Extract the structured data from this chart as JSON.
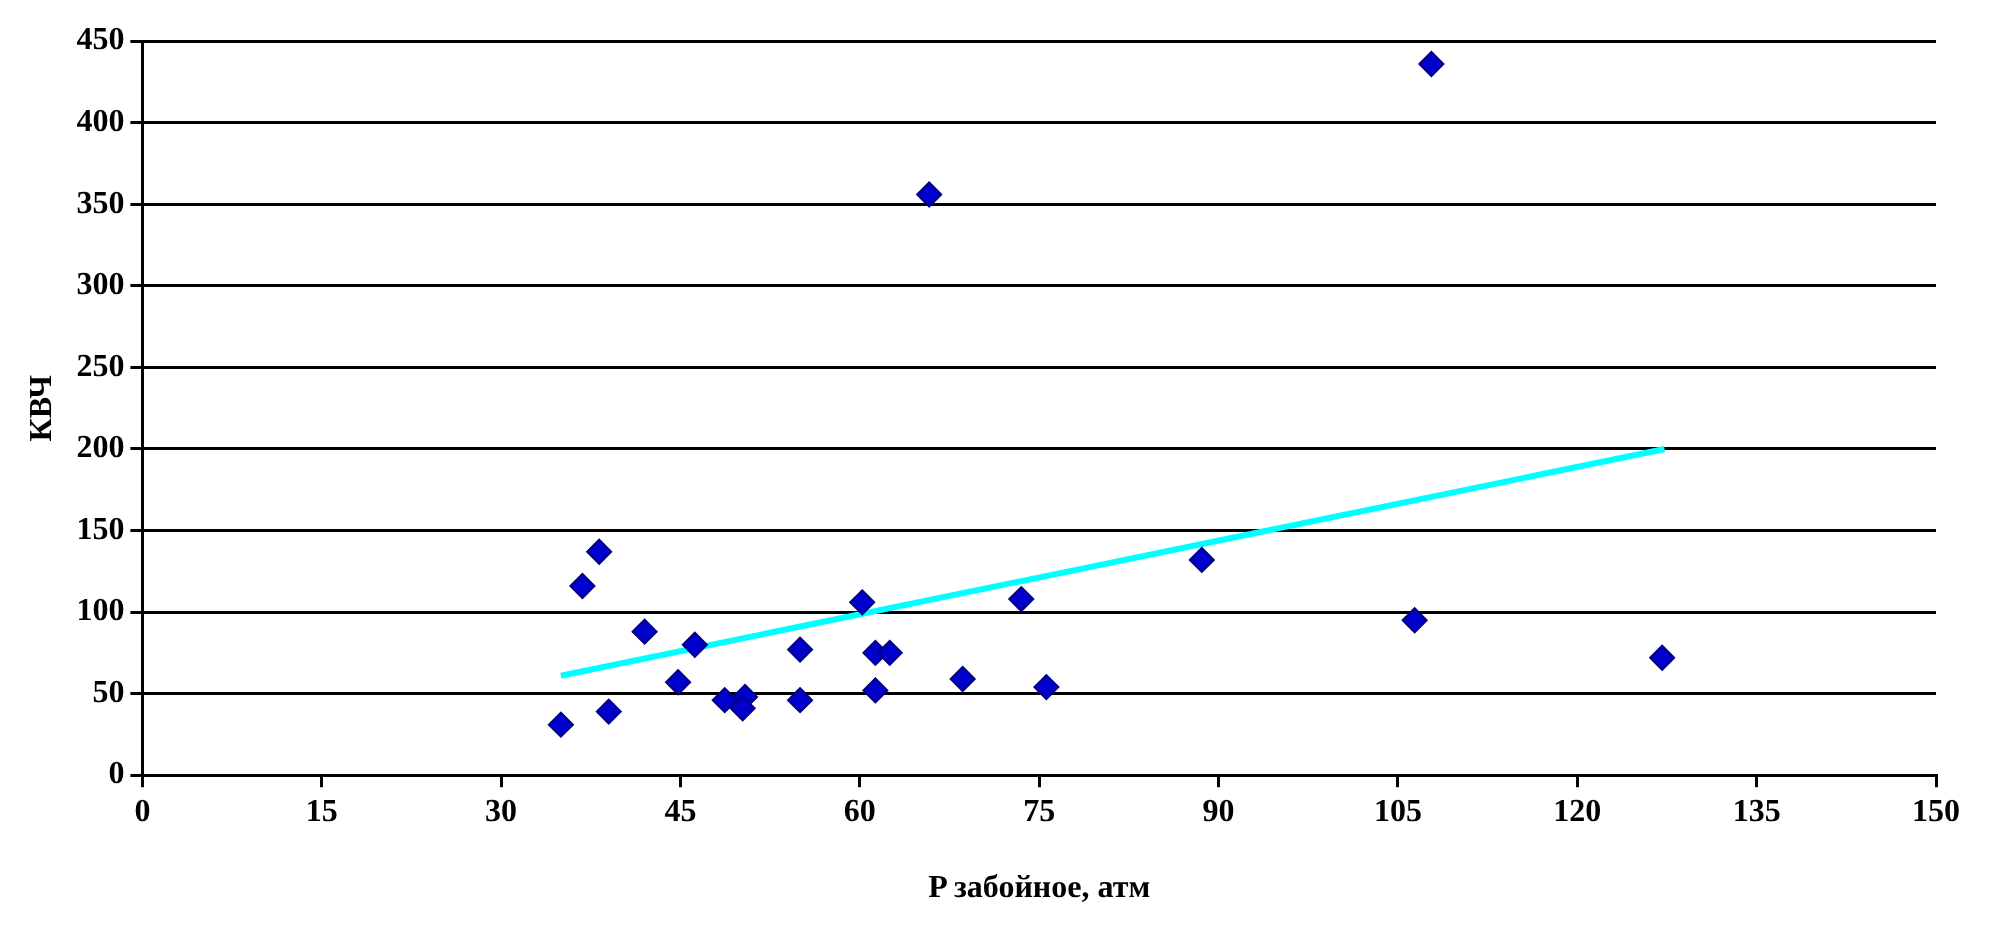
{
  "chart_data": {
    "type": "scatter",
    "xlabel": "P забойное, атм",
    "ylabel": "КВЧ",
    "xlim": [
      0,
      150
    ],
    "xticks": [
      0,
      15,
      30,
      45,
      60,
      75,
      90,
      105,
      120,
      135,
      150
    ],
    "ylim": [
      0,
      450
    ],
    "yticks": [
      0,
      50,
      100,
      150,
      200,
      250,
      300,
      350,
      400,
      450
    ],
    "grid": "y",
    "marker": "diamond",
    "legend": false,
    "series": [
      {
        "type": "scatter",
        "color": "#0000cc",
        "x": [
          35,
          36.8,
          38.2,
          39,
          42,
          44.8,
          46.2,
          48.7,
          50.4,
          50.2,
          55,
          55,
          60.2,
          61.3,
          61.3,
          62.5,
          65.8,
          68.6,
          73.5,
          75.6,
          88.6,
          106.4,
          107.8,
          127.1
        ],
        "values": [
          31,
          116,
          137,
          39,
          88,
          57,
          80,
          46,
          48,
          41,
          77,
          46,
          106,
          75,
          52,
          75,
          356,
          59,
          108,
          54,
          132,
          95,
          436,
          72
        ]
      },
      {
        "type": "line",
        "color": "#00ffff",
        "marker": "none",
        "x": [
          35,
          127.3
        ],
        "values": [
          61,
          200
        ]
      }
    ]
  }
}
